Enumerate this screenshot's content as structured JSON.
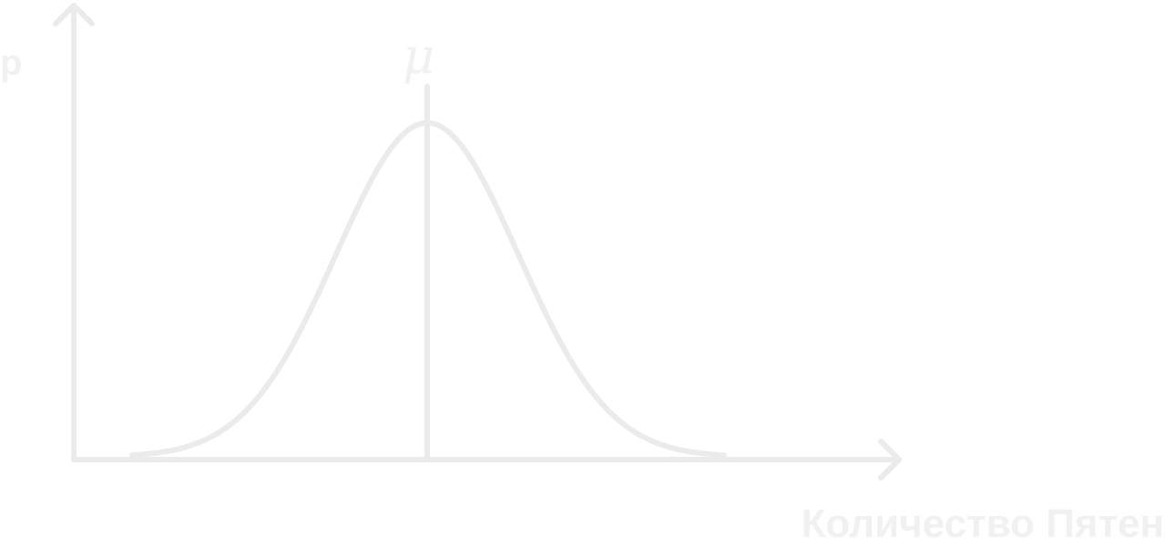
{
  "diagram": {
    "y_axis_label": "p",
    "x_axis_label": "Количество Пятен",
    "mean_label": "μ",
    "colors": {
      "lines": "#ebebeb",
      "text": "#f1f1f1",
      "background": "#ffffff"
    }
  }
}
